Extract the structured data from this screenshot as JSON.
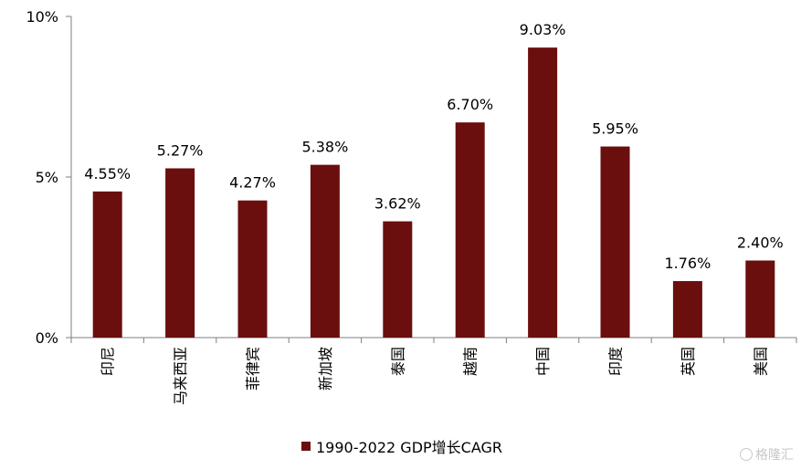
{
  "chart_data": {
    "type": "bar",
    "categories": [
      "印尼",
      "马来西亚",
      "菲律宾",
      "新加坡",
      "泰国",
      "越南",
      "中国",
      "印度",
      "英国",
      "美国"
    ],
    "series": [
      {
        "name": "1990-2022 GDP增长CAGR",
        "values": [
          4.55,
          5.27,
          4.27,
          5.38,
          3.62,
          6.7,
          9.03,
          5.95,
          1.76,
          2.4
        ],
        "labels": [
          "4.55%",
          "5.27%",
          "4.27%",
          "5.38%",
          "3.62%",
          "6.70%",
          "9.03%",
          "5.95%",
          "1.76%",
          "2.40%"
        ]
      }
    ],
    "ylim": [
      0,
      10
    ],
    "yticks": [
      0,
      5,
      10
    ],
    "ytick_labels": [
      "0%",
      "5%",
      "10%"
    ],
    "grid": false,
    "legend_position": "bottom",
    "bar_color": "#6B0E0E"
  },
  "watermark": {
    "text": "格隆汇"
  }
}
